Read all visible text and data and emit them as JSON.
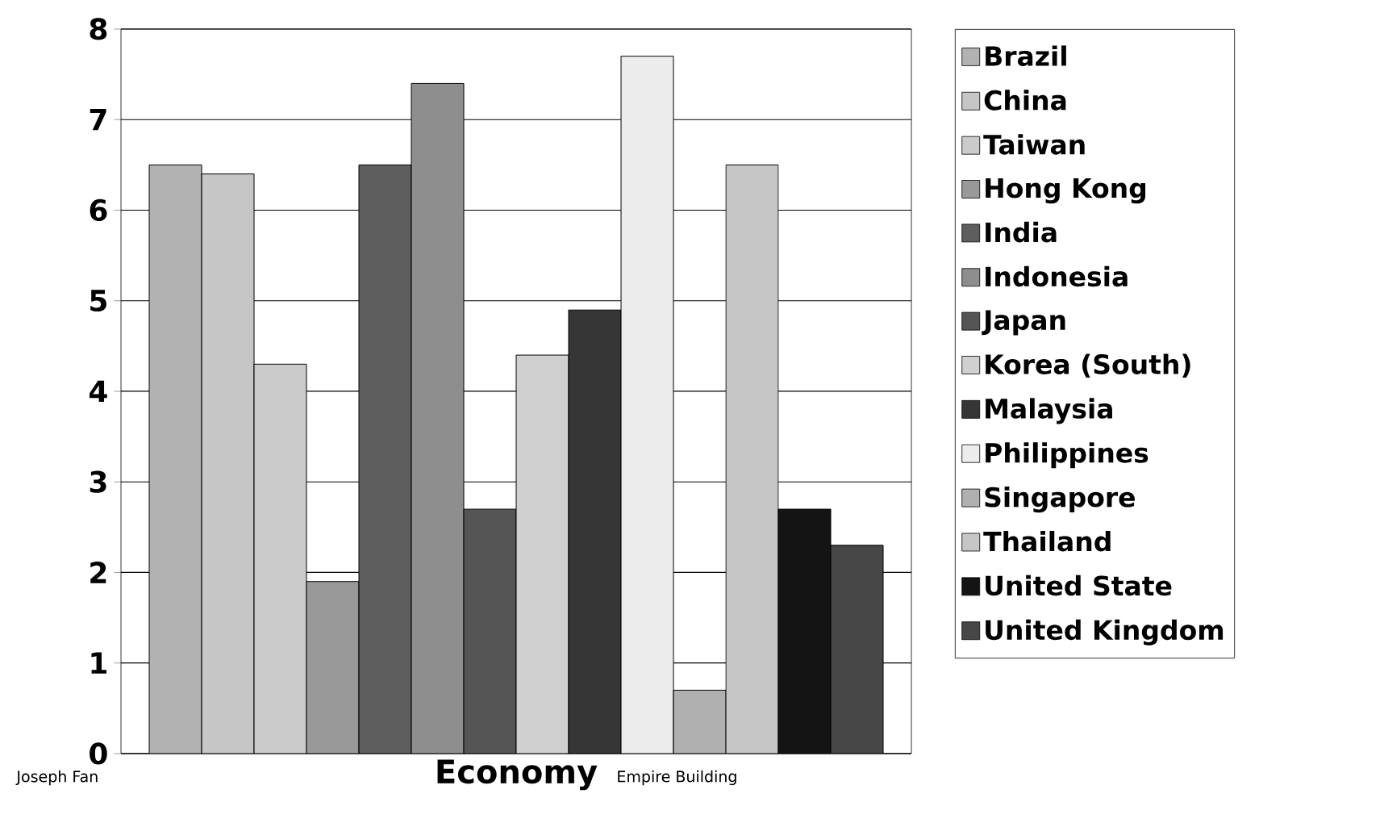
{
  "chart_data": {
    "type": "bar",
    "xlabel": "Economy",
    "categories": [
      null
    ],
    "series": [
      {
        "name": "Brazil",
        "color": "#b2b2b2",
        "values": [
          6.5
        ]
      },
      {
        "name": "China",
        "color": "#c6c6c6",
        "values": [
          6.4
        ]
      },
      {
        "name": "Taiwan",
        "color": "#cbcbcb",
        "values": [
          4.3
        ]
      },
      {
        "name": "Hong Kong",
        "color": "#999999",
        "values": [
          1.9
        ]
      },
      {
        "name": "India",
        "color": "#5e5e5e",
        "values": [
          6.5
        ]
      },
      {
        "name": "Indonesia",
        "color": "#8e8e8e",
        "values": [
          7.4
        ]
      },
      {
        "name": "Japan",
        "color": "#555555",
        "values": [
          2.7
        ]
      },
      {
        "name": "Korea (South)",
        "color": "#d0d0d0",
        "values": [
          4.4
        ]
      },
      {
        "name": "Malaysia",
        "color": "#363636",
        "values": [
          4.9
        ]
      },
      {
        "name": "Philippines",
        "color": "#ececec",
        "values": [
          7.7
        ]
      },
      {
        "name": "Singapore",
        "color": "#b0b0b0",
        "values": [
          0.7
        ]
      },
      {
        "name": "Thailand",
        "color": "#c6c6c6",
        "values": [
          6.5
        ]
      },
      {
        "name": "United State",
        "color": "#141414",
        "values": [
          2.7
        ]
      },
      {
        "name": "United Kingdom",
        "color": "#474747",
        "values": [
          2.3
        ]
      }
    ],
    "ylim": [
      0,
      8
    ],
    "yticks": [
      0,
      1,
      2,
      3,
      4,
      5,
      6,
      7,
      8
    ],
    "grid": "y",
    "legend": "right",
    "annotations": [
      "Joseph Fan",
      "Empire Building"
    ]
  }
}
